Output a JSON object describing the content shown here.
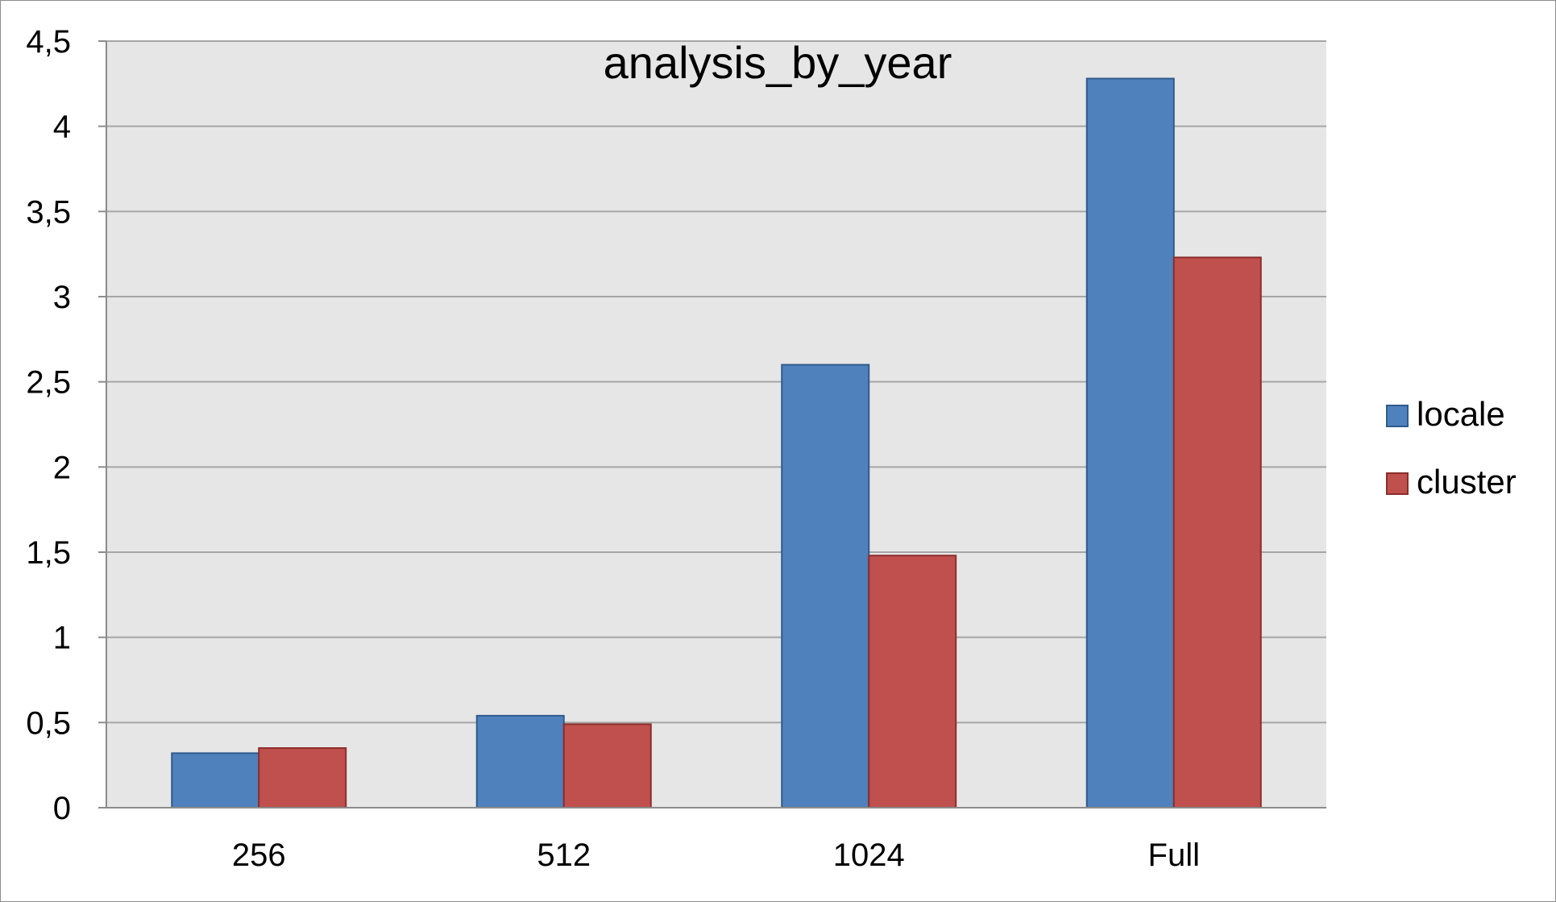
{
  "chart_data": {
    "type": "bar",
    "title": "analysis_by_year",
    "categories": [
      "256",
      "512",
      "1024",
      "Full"
    ],
    "series": [
      {
        "name": "locale",
        "values": [
          0.32,
          0.54,
          2.6,
          4.28
        ],
        "color": "#4f81bd",
        "stroke": "#2f5b8c"
      },
      {
        "name": "cluster",
        "values": [
          0.35,
          0.49,
          1.48,
          3.23
        ],
        "color": "#c0504d",
        "stroke": "#8b2e2b"
      }
    ],
    "ylim": [
      0,
      4.5
    ],
    "yticks": [
      "0",
      "0,5",
      "1",
      "1,5",
      "2",
      "2,5",
      "3",
      "3,5",
      "4",
      "4,5"
    ],
    "grid": true,
    "legend": "right",
    "plot_background": "#e6e6e6",
    "gridline_color": "#a6a6a6"
  }
}
